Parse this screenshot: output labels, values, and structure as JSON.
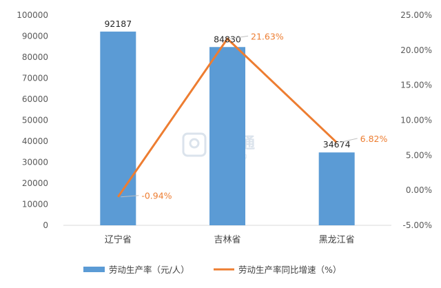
{
  "chart_data": {
    "type": "bar",
    "categories": [
      "辽宁省",
      "吉林省",
      "黑龙江省"
    ],
    "series": [
      {
        "name": "劳动生产率（元/人）",
        "type": "bar",
        "axis": "left",
        "values": [
          92187,
          84830,
          34674
        ],
        "labels": [
          "92187",
          "84830",
          "34674"
        ],
        "color": "#5B9BD5"
      },
      {
        "name": "劳动生产率同比增速（%）",
        "type": "line",
        "axis": "right",
        "values": [
          -0.94,
          21.63,
          6.82
        ],
        "labels": [
          "-0.94%",
          "21.63%",
          "6.82%"
        ],
        "color": "#ED7D31"
      }
    ],
    "y_left": {
      "min": 0,
      "max": 100000,
      "ticks": [
        0,
        10000,
        20000,
        30000,
        40000,
        50000,
        60000,
        70000,
        80000,
        90000,
        100000
      ],
      "tick_labels": [
        "0",
        "10000",
        "20000",
        "30000",
        "40000",
        "50000",
        "60000",
        "70000",
        "80000",
        "90000",
        "100000"
      ]
    },
    "y_right": {
      "min": -5,
      "max": 25,
      "ticks": [
        -5,
        0,
        5,
        10,
        15,
        20,
        25
      ],
      "tick_labels": [
        "-5.00%",
        "0.00%",
        "5.00%",
        "10.00%",
        "15.00%",
        "20.00%",
        "25.00%"
      ]
    },
    "grid": false,
    "legend_position": "bottom",
    "watermark": {
      "text": "建设通",
      "subtext": "jianshetong"
    }
  }
}
